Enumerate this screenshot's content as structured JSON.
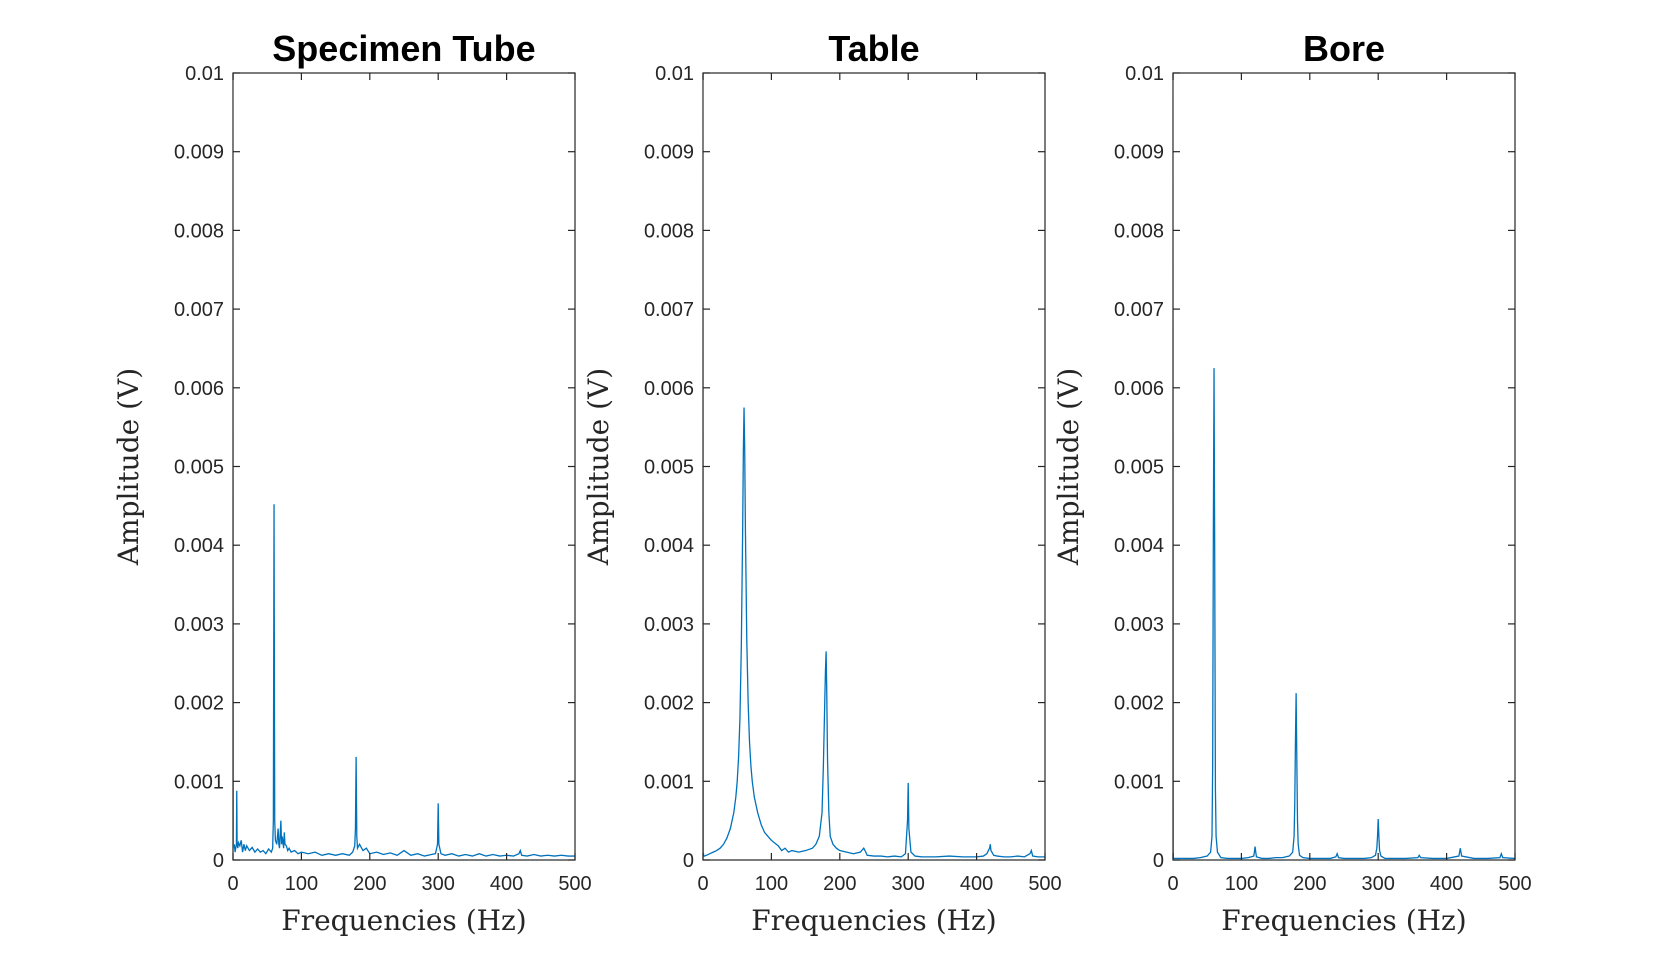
{
  "chart_data": [
    {
      "type": "line",
      "title": "Specimen Tube",
      "xlabel": "Frequencies (Hz)",
      "ylabel": "Amplitude (V)",
      "xlim": [
        0,
        500
      ],
      "ylim": [
        0,
        0.01
      ],
      "xticks": [
        "0",
        "100",
        "200",
        "300",
        "400",
        "500"
      ],
      "yticks": [
        "0",
        "0.001",
        "0.002",
        "0.003",
        "0.004",
        "0.005",
        "0.006",
        "0.007",
        "0.008",
        "0.009",
        "0.01"
      ],
      "grid": false,
      "line_color": "#0072BD",
      "series": [
        {
          "x": [
            0,
            0.5,
            1,
            2,
            3,
            4,
            5,
            5.5,
            6,
            7,
            8,
            10,
            12,
            14,
            16,
            18,
            20,
            24,
            28,
            32,
            36,
            40,
            44,
            48,
            52,
            56,
            58,
            59,
            60,
            61,
            62,
            64,
            66,
            67,
            68,
            70,
            71,
            72,
            74,
            75,
            76,
            78,
            80,
            82,
            85,
            90,
            95,
            100,
            110,
            120,
            130,
            140,
            150,
            160,
            170,
            175,
            178,
            179,
            180,
            181,
            182,
            185,
            190,
            195,
            200,
            210,
            220,
            230,
            240,
            250,
            260,
            270,
            280,
            290,
            296,
            299,
            300,
            301,
            304,
            310,
            320,
            330,
            340,
            350,
            360,
            370,
            380,
            390,
            400,
            410,
            418,
            420,
            422,
            430,
            440,
            450,
            460,
            470,
            480,
            490,
            500
          ],
          "y": [
            0.01,
            0.0002,
            0.00015,
            0.0002,
            0.0001,
            0.00015,
            0.0002,
            0.00088,
            0.0002,
            0.00015,
            0.00022,
            0.00018,
            0.00025,
            0.0001,
            0.0002,
            0.00012,
            0.00018,
            0.00012,
            0.00016,
            0.0001,
            0.00014,
            0.0001,
            0.00012,
            8e-05,
            0.00014,
            0.0001,
            0.00015,
            0.0005,
            0.00452,
            0.0005,
            0.00025,
            0.0002,
            0.0004,
            0.0002,
            0.00015,
            0.0005,
            0.0002,
            0.0003,
            0.00015,
            0.00035,
            0.0002,
            0.00018,
            0.00012,
            0.00015,
            0.0001,
            0.00012,
            8e-05,
            0.0001,
            8e-05,
            0.0001,
            6e-05,
            8e-05,
            6e-05,
            8e-05,
            6e-05,
            0.0001,
            0.00018,
            0.0004,
            0.00131,
            0.0003,
            0.00015,
            0.0002,
            0.00012,
            0.00015,
            8e-05,
            0.0001,
            7e-05,
            9e-05,
            6e-05,
            0.00012,
            6e-05,
            8e-05,
            5e-05,
            7e-05,
            8e-05,
            0.0002,
            0.00072,
            0.0002,
            8e-05,
            6e-05,
            8e-05,
            5e-05,
            7e-05,
            5e-05,
            8e-05,
            5e-05,
            7e-05,
            5e-05,
            6e-05,
            5e-05,
            8e-05,
            0.00012,
            6e-05,
            5e-05,
            7e-05,
            5e-05,
            6e-05,
            5e-05,
            6e-05,
            5e-05,
            5e-05
          ]
        }
      ]
    },
    {
      "type": "line",
      "title": "Table",
      "xlabel": "Frequencies (Hz)",
      "ylabel": "Amplitude (V)",
      "xlim": [
        0,
        500
      ],
      "ylim": [
        0,
        0.01
      ],
      "xticks": [
        "0",
        "100",
        "200",
        "300",
        "400",
        "500"
      ],
      "yticks": [
        "0",
        "0.001",
        "0.002",
        "0.003",
        "0.004",
        "0.005",
        "0.006",
        "0.007",
        "0.008",
        "0.009",
        "0.01"
      ],
      "grid": false,
      "line_color": "#0072BD",
      "series": [
        {
          "x": [
            0,
            0.5,
            1,
            2,
            5,
            10,
            15,
            20,
            25,
            30,
            35,
            40,
            45,
            48,
            50,
            52,
            54,
            56,
            58,
            59,
            60,
            61,
            62,
            64,
            66,
            68,
            70,
            72,
            75,
            80,
            85,
            90,
            95,
            100,
            110,
            115,
            120,
            125,
            130,
            140,
            150,
            160,
            165,
            170,
            174,
            176,
            178,
            179,
            180,
            181,
            182,
            184,
            186,
            190,
            195,
            200,
            210,
            220,
            230,
            235,
            238,
            240,
            250,
            260,
            270,
            280,
            290,
            296,
            299,
            300,
            301,
            304,
            310,
            320,
            340,
            360,
            380,
            400,
            410,
            415,
            419,
            420,
            421,
            425,
            430,
            440,
            450,
            460,
            470,
            478,
            480,
            482,
            490,
            500
          ],
          "y": [
            0.01,
            0.0001,
            5e-05,
            5e-05,
            6e-05,
            8e-05,
            0.0001,
            0.00012,
            0.00015,
            0.0002,
            0.00028,
            0.0004,
            0.0006,
            0.0008,
            0.001,
            0.0013,
            0.0018,
            0.0027,
            0.0042,
            0.0052,
            0.00575,
            0.0052,
            0.0042,
            0.0028,
            0.002,
            0.0015,
            0.0012,
            0.001,
            0.0008,
            0.0006,
            0.00045,
            0.00035,
            0.0003,
            0.00025,
            0.00018,
            0.00012,
            0.00015,
            0.0001,
            0.00012,
            0.0001,
            0.00012,
            0.00015,
            0.0002,
            0.0003,
            0.0006,
            0.0012,
            0.002,
            0.0024,
            0.00265,
            0.0021,
            0.0013,
            0.0006,
            0.0003,
            0.0002,
            0.00015,
            0.00012,
            0.0001,
            8e-05,
            0.0001,
            0.00015,
            0.0001,
            6e-05,
            5e-05,
            5e-05,
            4e-05,
            5e-05,
            4e-05,
            8e-05,
            0.0005,
            0.00098,
            0.0004,
            0.0001,
            5e-05,
            4e-05,
            4e-05,
            5e-05,
            4e-05,
            4e-05,
            5e-05,
            8e-05,
            0.00015,
            0.0002,
            0.00012,
            6e-05,
            5e-05,
            4e-05,
            4e-05,
            5e-05,
            4e-05,
            8e-05,
            0.00012,
            5e-05,
            4e-05,
            4e-05
          ]
        }
      ]
    },
    {
      "type": "line",
      "title": "Bore",
      "xlabel": "Frequencies (Hz)",
      "ylabel": "Amplitude (V)",
      "xlim": [
        0,
        500
      ],
      "ylim": [
        0,
        0.01
      ],
      "xticks": [
        "0",
        "100",
        "200",
        "300",
        "400",
        "500"
      ],
      "yticks": [
        "0",
        "0.001",
        "0.002",
        "0.003",
        "0.004",
        "0.005",
        "0.006",
        "0.007",
        "0.008",
        "0.009",
        "0.01"
      ],
      "grid": false,
      "line_color": "#0072BD",
      "series": [
        {
          "x": [
            0,
            0.5,
            1,
            5,
            10,
            20,
            30,
            40,
            50,
            55,
            57,
            58,
            59,
            60,
            61,
            62,
            63,
            65,
            70,
            80,
            90,
            100,
            110,
            118,
            119,
            120,
            121,
            122,
            130,
            140,
            150,
            160,
            170,
            175,
            177,
            178,
            179,
            180,
            181,
            182,
            183,
            185,
            190,
            200,
            210,
            220,
            230,
            238,
            240,
            242,
            250,
            260,
            270,
            280,
            290,
            296,
            298,
            299,
            300,
            301,
            302,
            304,
            310,
            320,
            340,
            358,
            360,
            362,
            380,
            400,
            418,
            420,
            422,
            440,
            460,
            478,
            480,
            482,
            500
          ],
          "y": [
            0.01,
            3e-05,
            2e-05,
            2e-05,
            2e-05,
            2e-05,
            2e-05,
            3e-05,
            5e-05,
            0.0001,
            0.0003,
            0.0012,
            0.0042,
            0.00625,
            0.0038,
            0.0009,
            0.0003,
            0.0001,
            3e-05,
            2e-05,
            2e-05,
            2e-05,
            3e-05,
            5e-05,
            0.0001,
            0.00017,
            0.0001,
            4e-05,
            2e-05,
            2e-05,
            3e-05,
            3e-05,
            5e-05,
            0.0001,
            0.0003,
            0.0007,
            0.0015,
            0.00212,
            0.0013,
            0.0005,
            0.0002,
            6e-05,
            3e-05,
            2e-05,
            2e-05,
            2e-05,
            2e-05,
            4e-05,
            8e-05,
            3e-05,
            2e-05,
            2e-05,
            2e-05,
            2e-05,
            3e-05,
            6e-05,
            0.00015,
            0.0003,
            0.00052,
            0.0003,
            0.00012,
            5e-05,
            2e-05,
            2e-05,
            2e-05,
            3e-05,
            6e-05,
            3e-05,
            2e-05,
            2e-05,
            5e-05,
            0.00015,
            5e-05,
            2e-05,
            2e-05,
            3e-05,
            8e-05,
            3e-05,
            2e-05
          ]
        }
      ]
    }
  ]
}
